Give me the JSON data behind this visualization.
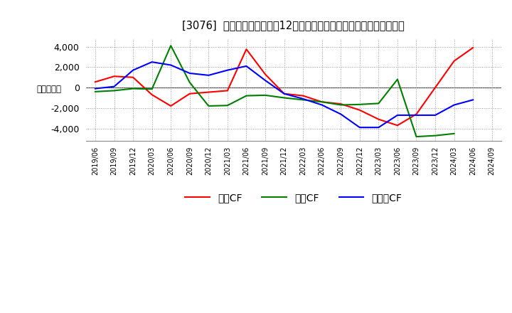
{
  "title": "[3076]  キャッシュフローの12か月移動合計の対前年同期増減額の推移",
  "ylabel": "（百万円）",
  "x_labels": [
    "2019/06",
    "2019/09",
    "2019/12",
    "2020/03",
    "2020/06",
    "2020/09",
    "2020/12",
    "2021/03",
    "2021/06",
    "2021/09",
    "2021/12",
    "2022/03",
    "2022/06",
    "2022/09",
    "2022/12",
    "2023/03",
    "2023/06",
    "2023/09",
    "2023/12",
    "2024/03",
    "2024/06",
    "2024/09"
  ],
  "operating_cf": [
    550,
    1100,
    1000,
    -700,
    -1800,
    -600,
    -450,
    -300,
    3750,
    1300,
    -600,
    -800,
    -1400,
    -1600,
    -2200,
    -3100,
    -3700,
    -2600,
    0,
    2600,
    3900,
    null
  ],
  "investing_cf": [
    -400,
    -300,
    -100,
    -150,
    4100,
    500,
    -1800,
    -1750,
    -800,
    -750,
    -1000,
    -1200,
    -1400,
    -1700,
    -1650,
    -1550,
    800,
    -4800,
    -4700,
    -4500,
    null,
    null
  ],
  "free_cf": [
    -100,
    100,
    1700,
    2500,
    2200,
    1400,
    1200,
    1700,
    2100,
    700,
    -600,
    -1100,
    -1700,
    -2600,
    -3900,
    -3900,
    -2700,
    -2700,
    -2700,
    -1700,
    -1200,
    null
  ],
  "ylim": [
    -5200,
    4800
  ],
  "yticks": [
    -4000,
    -2000,
    0,
    2000,
    4000
  ],
  "line_colors": {
    "operating": "#ff0000",
    "investing": "#008000",
    "free": "#0000ff"
  },
  "legend_labels": [
    "営業CF",
    "投資CF",
    "フリーCF"
  ],
  "bg_color": "#ffffff",
  "grid_color": "#aaaaaa"
}
